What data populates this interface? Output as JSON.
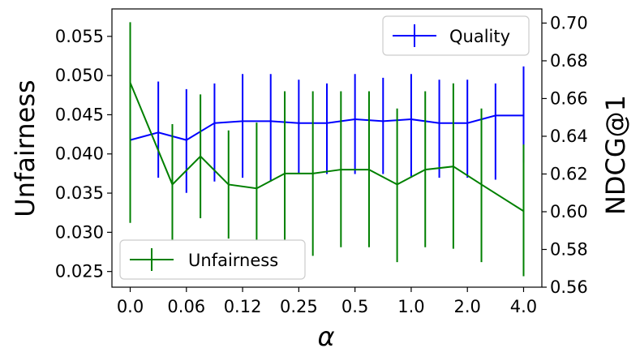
{
  "chart_data": {
    "type": "line",
    "xlabel": "α",
    "ylabel_left": "Unfairness",
    "ylabel_right": "NDCG@1",
    "x_tick_labels": [
      "0.0",
      "0.06",
      "0.12",
      "0.25",
      "0.5",
      "1.0",
      "2.0",
      "4.0"
    ],
    "x_tick_positions": [
      0,
      2,
      4,
      6,
      8,
      10,
      12,
      14
    ],
    "x_points": [
      0,
      1,
      2,
      3,
      4,
      5,
      6,
      7,
      8,
      9,
      10,
      11,
      12,
      13,
      14
    ],
    "xlim": [
      -0.65,
      14.65
    ],
    "ylim_left": [
      0.023,
      0.0585
    ],
    "ylim_right": [
      0.56,
      0.7075
    ],
    "yticks_left": [
      "0.025",
      "0.030",
      "0.035",
      "0.040",
      "0.045",
      "0.050",
      "0.055"
    ],
    "yticks_left_values": [
      0.025,
      0.03,
      0.035,
      0.04,
      0.045,
      0.05,
      0.055
    ],
    "yticks_right": [
      "0.56",
      "0.58",
      "0.60",
      "0.62",
      "0.64",
      "0.66",
      "0.68",
      "0.70"
    ],
    "yticks_right_values": [
      0.56,
      0.58,
      0.6,
      0.62,
      0.64,
      0.66,
      0.68,
      0.7
    ],
    "series": [
      {
        "name": "Quality",
        "axis": "right",
        "color": "#0000ff",
        "values": [
          0.638,
          0.642,
          0.638,
          0.647,
          0.648,
          0.648,
          0.647,
          0.647,
          0.649,
          0.648,
          0.649,
          0.647,
          0.647,
          0.651,
          0.651
        ],
        "err_low": [
          0.622,
          0.618,
          0.61,
          0.616,
          0.618,
          0.616,
          0.62,
          0.62,
          0.62,
          0.62,
          0.618,
          0.618,
          0.618,
          0.617,
          0.626
        ],
        "err_high": [
          0.654,
          0.669,
          0.665,
          0.668,
          0.673,
          0.673,
          0.67,
          0.668,
          0.673,
          0.671,
          0.673,
          0.67,
          0.67,
          0.668,
          0.677
        ]
      },
      {
        "name": "Unfairness",
        "axis": "left",
        "color": "#008000",
        "values": [
          0.0491,
          0.0361,
          0.0397,
          0.0361,
          0.0356,
          0.0375,
          0.0375,
          0.038,
          0.038,
          0.0361,
          0.038,
          0.0384,
          0.0361,
          0.0327
        ],
        "err_low": [
          0.0312,
          0.0282,
          0.0318,
          0.0292,
          0.0272,
          0.027,
          0.027,
          0.0281,
          0.0281,
          0.0262,
          0.0281,
          0.0279,
          0.0262,
          0.0244
        ],
        "err_high": [
          0.0568,
          0.0438,
          0.0476,
          0.043,
          0.044,
          0.048,
          0.048,
          0.048,
          0.048,
          0.0458,
          0.048,
          0.049,
          0.0458,
          0.0412
        ],
        "x_points": [
          0,
          1.5,
          2.5,
          3.5,
          4.5,
          5.5,
          6.5,
          7.5,
          8.5,
          9.5,
          10.5,
          11.5,
          12.5,
          14
        ]
      }
    ],
    "legends": [
      {
        "label": "Quality",
        "placement": "top-right"
      },
      {
        "label": "Unfairness",
        "placement": "lower-left"
      }
    ]
  }
}
